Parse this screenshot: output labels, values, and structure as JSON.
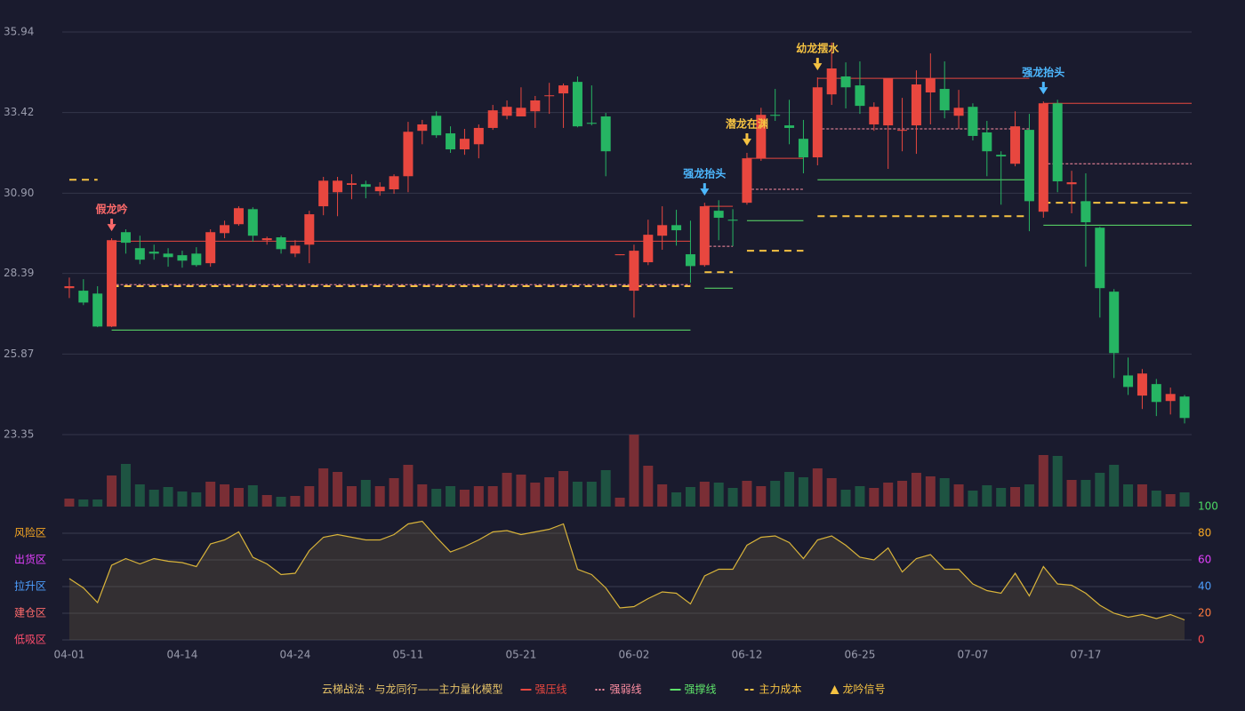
{
  "chart_data": [
    {
      "type": "candlestick",
      "categories": [
        "04-01",
        null,
        null,
        null,
        null,
        null,
        null,
        null,
        "04-14",
        null,
        null,
        null,
        null,
        null,
        null,
        null,
        "04-24",
        null,
        null,
        null,
        null,
        null,
        null,
        null,
        "05-11",
        null,
        null,
        null,
        null,
        null,
        null,
        null,
        "05-21",
        null,
        null,
        null,
        null,
        null,
        null,
        null,
        "06-02",
        null,
        null,
        null,
        null,
        null,
        null,
        null,
        "06-12",
        null,
        null,
        null,
        null,
        null,
        null,
        null,
        "06-25",
        null,
        null,
        null,
        null,
        null,
        null,
        null,
        "07-07",
        null,
        null,
        null,
        null,
        null,
        null,
        null,
        "07-17",
        null,
        null,
        null,
        null,
        null,
        null,
        null
      ],
      "open": [
        27.93,
        27.85,
        27.76,
        26.73,
        29.68,
        29.18,
        29.07,
        29.01,
        28.96,
        29.01,
        28.71,
        29.65,
        29.93,
        30.4,
        29.43,
        29.52,
        29.01,
        29.29,
        30.49,
        30.93,
        31.16,
        31.18,
        30.96,
        31.02,
        31.43,
        32.85,
        33.32,
        32.77,
        32.27,
        32.43,
        32.94,
        33.32,
        33.3,
        33.46,
        33.94,
        34.02,
        34.38,
        33.1,
        33.3,
        28.96,
        27.85,
        28.74,
        29.57,
        29.9,
        28.99,
        28.65,
        30.35,
        30.07,
        30.6,
        31.99,
        33.35,
        33.02,
        32.6,
        32.02,
        33.99,
        34.55,
        34.27,
        33.05,
        33.02,
        32.85,
        33.02,
        34.05,
        34.16,
        33.32,
        33.6,
        32.8,
        32.1,
        31.82,
        32.88,
        30.32,
        33.71,
        31.18,
        30.65,
        29.82,
        27.82,
        25.2,
        24.57,
        24.93,
        24.4,
        24.54
      ],
      "close": [
        27.99,
        27.48,
        26.73,
        29.43,
        29.35,
        28.82,
        29.01,
        28.9,
        28.79,
        28.65,
        29.68,
        29.9,
        30.43,
        29.57,
        29.49,
        29.15,
        29.26,
        30.24,
        31.29,
        31.29,
        31.21,
        31.1,
        31.1,
        31.43,
        32.82,
        33.05,
        32.71,
        32.27,
        32.6,
        32.94,
        33.49,
        33.6,
        33.57,
        33.8,
        33.96,
        34.27,
        32.99,
        33.07,
        32.21,
        28.99,
        29.1,
        29.6,
        29.9,
        29.74,
        28.62,
        30.49,
        30.13,
        30.04,
        31.99,
        33.35,
        33.32,
        32.94,
        32.02,
        34.21,
        34.8,
        34.21,
        33.63,
        33.6,
        34.49,
        32.88,
        34.3,
        34.49,
        33.49,
        33.57,
        32.69,
        32.21,
        32.05,
        32.99,
        30.65,
        33.71,
        31.27,
        31.24,
        29.99,
        27.93,
        25.9,
        24.84,
        25.26,
        24.37,
        24.62,
        23.87
      ],
      "high": [
        28.26,
        28.21,
        27.99,
        29.49,
        29.77,
        29.57,
        29.29,
        29.18,
        29.1,
        29.21,
        29.77,
        30.04,
        30.49,
        30.46,
        29.54,
        29.57,
        29.43,
        30.35,
        31.41,
        31.41,
        31.49,
        31.29,
        31.24,
        31.49,
        33.13,
        33.19,
        33.46,
        32.99,
        32.91,
        33.05,
        33.66,
        33.8,
        34.21,
        33.94,
        34.35,
        34.33,
        34.55,
        34.27,
        33.41,
        28.99,
        29.29,
        30.07,
        30.49,
        30.38,
        30.04,
        30.6,
        30.68,
        30.4,
        32.16,
        33.57,
        34.16,
        33.82,
        33.19,
        34.52,
        35.61,
        34.99,
        35.02,
        33.74,
        34.49,
        33.88,
        34.74,
        35.27,
        35.02,
        34.13,
        33.71,
        33.16,
        32.21,
        33.46,
        33.38,
        33.77,
        33.82,
        31.6,
        31.52,
        29.85,
        27.9,
        25.76,
        25.4,
        25.09,
        24.82,
        24.59
      ],
      "low": [
        27.62,
        27.4,
        26.71,
        26.71,
        29.01,
        28.68,
        28.82,
        28.6,
        28.57,
        28.6,
        28.6,
        29.49,
        29.88,
        29.38,
        29.29,
        29.01,
        28.9,
        28.71,
        30.21,
        30.18,
        30.71,
        30.74,
        30.82,
        30.88,
        30.93,
        32.43,
        32.63,
        32.16,
        32.1,
        31.99,
        32.88,
        33.21,
        33.3,
        32.94,
        33.38,
        32.94,
        32.96,
        33.02,
        31.43,
        28.96,
        27.01,
        28.65,
        29.13,
        29.26,
        28.1,
        28.6,
        29.43,
        29.24,
        30.54,
        31.91,
        33.16,
        32.43,
        31.52,
        31.77,
        33.66,
        33.55,
        33.38,
        32.85,
        31.66,
        32.21,
        32.13,
        33.05,
        33.24,
        32.91,
        32.55,
        31.43,
        30.54,
        31.74,
        29.71,
        30.13,
        30.93,
        30.27,
        28.6,
        27.01,
        25.12,
        24.59,
        24.15,
        23.93,
        23.98,
        23.7
      ],
      "up_color": "#e8473f",
      "down_color": "#26b563",
      "ylim": [
        23.35,
        35.94
      ],
      "yticks": [
        23.35,
        25.87,
        28.39,
        {
          "value": 30.9,
          "label": "30.90"
        },
        33.42,
        35.94
      ],
      "grid": true,
      "levels": [
        {
          "name": "强压线",
          "color": "#e8473f",
          "style": "solid",
          "values": [
            null,
            null,
            null,
            29.4,
            29.4,
            29.4,
            29.4,
            29.4,
            29.4,
            29.4,
            29.4,
            29.4,
            29.4,
            29.4,
            29.4,
            29.4,
            29.4,
            29.4,
            29.4,
            29.4,
            29.4,
            29.4,
            29.4,
            29.4,
            29.4,
            29.4,
            29.4,
            29.4,
            29.4,
            29.4,
            29.4,
            29.4,
            29.4,
            29.4,
            29.4,
            29.4,
            29.4,
            29.4,
            29.4,
            29.4,
            29.4,
            29.4,
            29.4,
            29.4,
            29.4,
            30.49,
            30.49,
            30.49,
            31.99,
            31.99,
            31.99,
            31.99,
            31.99,
            34.49,
            34.49,
            34.49,
            34.49,
            34.49,
            34.49,
            34.49,
            34.49,
            34.49,
            34.49,
            34.49,
            34.49,
            34.49,
            34.49,
            34.49,
            34.49,
            33.71,
            33.71,
            33.71,
            33.71,
            33.71,
            33.71,
            33.71,
            33.71,
            33.71,
            33.71,
            33.71
          ]
        },
        {
          "name": "强弱线",
          "color": "#ff8fa3",
          "style": "dotted",
          "values": [
            null,
            null,
            null,
            28.04,
            28.04,
            28.04,
            28.04,
            28.04,
            28.04,
            28.04,
            28.04,
            28.04,
            28.04,
            28.04,
            28.04,
            28.04,
            28.04,
            28.04,
            28.04,
            28.04,
            28.04,
            28.04,
            28.04,
            28.04,
            28.04,
            28.04,
            28.04,
            28.04,
            28.04,
            28.04,
            28.04,
            28.04,
            28.04,
            28.04,
            28.04,
            28.04,
            28.04,
            28.04,
            28.04,
            28.04,
            28.04,
            28.04,
            28.04,
            28.04,
            28.04,
            29.24,
            29.24,
            29.24,
            31.02,
            31.02,
            31.02,
            31.02,
            31.02,
            32.91,
            32.91,
            32.91,
            32.91,
            32.91,
            32.91,
            32.91,
            32.91,
            32.91,
            32.91,
            32.91,
            32.91,
            32.91,
            32.91,
            32.91,
            32.91,
            31.82,
            31.82,
            31.82,
            31.82,
            31.82,
            31.82,
            31.82,
            31.82,
            31.82,
            31.82,
            31.82
          ]
        },
        {
          "name": "强撑线",
          "color": "#5ee36a",
          "style": "solid",
          "values": [
            null,
            null,
            null,
            26.62,
            26.62,
            26.62,
            26.62,
            26.62,
            26.62,
            26.62,
            26.62,
            26.62,
            26.62,
            26.62,
            26.62,
            26.62,
            26.62,
            26.62,
            26.62,
            26.62,
            26.62,
            26.62,
            26.62,
            26.62,
            26.62,
            26.62,
            26.62,
            26.62,
            26.62,
            26.62,
            26.62,
            26.62,
            26.62,
            26.62,
            26.62,
            26.62,
            26.62,
            26.62,
            26.62,
            26.62,
            26.62,
            26.62,
            26.62,
            26.62,
            26.62,
            27.93,
            27.93,
            27.93,
            30.04,
            30.04,
            30.04,
            30.04,
            30.04,
            31.32,
            31.32,
            31.32,
            31.32,
            31.32,
            31.32,
            31.32,
            31.32,
            31.32,
            31.32,
            31.32,
            31.32,
            31.32,
            31.32,
            31.32,
            31.32,
            29.9,
            29.9,
            29.9,
            29.9,
            29.9,
            29.9,
            29.9,
            29.9,
            29.9,
            29.9,
            29.9
          ]
        },
        {
          "name": "主力成本",
          "color": "#f5c242",
          "style": "dashed",
          "values": [
            31.32,
            31.32,
            31.32,
            27.99,
            27.99,
            27.99,
            27.99,
            27.99,
            27.99,
            27.99,
            27.99,
            27.99,
            27.99,
            27.99,
            27.99,
            27.99,
            27.99,
            27.99,
            27.99,
            27.99,
            27.99,
            27.99,
            27.99,
            27.99,
            27.99,
            27.99,
            27.99,
            27.99,
            27.99,
            27.99,
            27.99,
            27.99,
            27.99,
            27.99,
            27.99,
            27.99,
            27.99,
            27.99,
            27.99,
            27.99,
            27.99,
            27.99,
            27.99,
            27.99,
            27.99,
            28.43,
            28.43,
            28.43,
            29.1,
            29.1,
            29.1,
            29.1,
            29.1,
            30.18,
            30.18,
            30.18,
            30.18,
            30.18,
            30.18,
            30.18,
            30.18,
            30.18,
            30.18,
            30.18,
            30.18,
            30.18,
            30.18,
            30.18,
            30.18,
            30.6,
            30.6,
            30.6,
            30.6,
            30.6,
            30.6,
            30.6,
            30.6,
            30.6,
            30.6,
            30.6
          ]
        }
      ],
      "signals": [
        {
          "label": "假龙吟",
          "index": 3,
          "color": "#ff6b6b"
        },
        {
          "label": "强龙抬头",
          "index": 45,
          "color": "#4db8ff"
        },
        {
          "label": "潜龙在渊",
          "index": 48,
          "color": "#f5c242"
        },
        {
          "label": "幼龙摆水",
          "index": 53,
          "color": "#f5c242"
        },
        {
          "label": "强龙抬头",
          "index": 69,
          "color": "#4db8ff"
        }
      ],
      "legend_title": "云梯战法 · 与龙同行——主力量化模型",
      "signal_legend": {
        "name": "龙吟信号",
        "color": "#f5c242"
      }
    },
    {
      "type": "bar",
      "values": [
        9,
        8,
        8,
        35,
        48,
        25,
        19,
        22,
        17,
        16,
        28,
        25,
        21,
        24,
        13,
        11,
        12,
        23,
        43,
        39,
        23,
        30,
        23,
        32,
        47,
        25,
        20,
        23,
        19,
        23,
        23,
        38,
        36,
        27,
        33,
        40,
        28,
        28,
        41,
        10,
        81,
        46,
        25,
        16,
        22,
        28,
        27,
        21,
        29,
        23,
        29,
        39,
        33,
        43,
        32,
        19,
        23,
        21,
        27,
        29,
        38,
        34,
        32,
        25,
        18,
        24,
        21,
        22,
        25,
        58,
        57,
        30,
        30,
        38,
        47,
        25,
        25,
        18,
        14,
        16
      ],
      "up_color": "#7a2e35",
      "down_color": "#1e5442"
    },
    {
      "type": "area",
      "values": [
        46,
        39,
        28,
        56,
        61,
        57,
        61,
        59,
        58,
        55,
        72,
        75,
        81,
        62,
        57,
        49,
        50,
        67,
        77,
        79,
        77,
        75,
        75,
        79,
        87,
        89,
        77,
        66,
        70,
        75,
        81,
        82,
        79,
        81,
        83,
        87,
        53,
        49,
        39,
        24,
        25,
        31,
        36,
        35,
        27,
        48,
        53,
        53,
        71,
        77,
        78,
        73,
        61,
        75,
        78,
        71,
        62,
        60,
        69,
        51,
        61,
        64,
        53,
        53,
        42,
        37,
        35,
        50,
        33,
        55,
        42,
        41,
        35,
        26,
        20,
        17,
        19,
        16,
        19,
        15
      ],
      "color": "#d9b43a",
      "fill": "rgba(120,100,60,0.28)",
      "ylim": [
        0,
        100
      ],
      "yticks": [
        0,
        20,
        40,
        60,
        80,
        100
      ],
      "ytick_colors": [
        "#ff4d4d",
        "#ff7a3d",
        "#4d9fff",
        "#e040fb",
        "#f5a623",
        "#4cd964"
      ],
      "zones": [
        {
          "label": "风险区",
          "value": 80,
          "color": "#f5a623"
        },
        {
          "label": "出货区",
          "value": 60,
          "color": "#e040fb"
        },
        {
          "label": "拉升区",
          "value": 40,
          "color": "#4d9fff"
        },
        {
          "label": "建仓区",
          "value": 20,
          "color": "#ff6b6b"
        },
        {
          "label": "低吸区",
          "value": 0,
          "color": "#ff4d6d"
        }
      ]
    }
  ]
}
